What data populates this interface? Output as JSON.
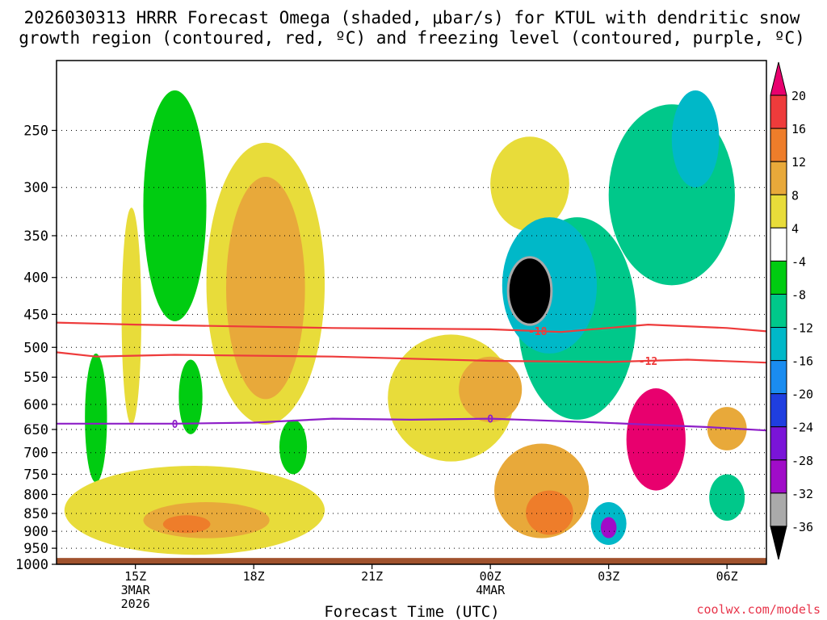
{
  "chart_data": {
    "type": "heatmap",
    "title_line1": "2026030313 HRRR Forecast Omega (shaded, μbar/s) for KTUL with dendritic snow",
    "title_line2": "growth region (contoured, red, ºC) and freezing level (contoured, purple, ºC)",
    "xlabel": "Forecast Time (UTC)",
    "ylabel": "",
    "credit": "coolwx.com/models",
    "x_ticks": [
      {
        "hour": 15,
        "label": "15Z",
        "sub1": "3MAR",
        "sub2": "2026"
      },
      {
        "hour": 18,
        "label": "18Z",
        "sub1": "",
        "sub2": ""
      },
      {
        "hour": 21,
        "label": "21Z",
        "sub1": "",
        "sub2": ""
      },
      {
        "hour": 24,
        "label": "00Z",
        "sub1": "4MAR",
        "sub2": ""
      },
      {
        "hour": 27,
        "label": "03Z",
        "sub1": "",
        "sub2": ""
      },
      {
        "hour": 30,
        "label": "06Z",
        "sub1": "",
        "sub2": ""
      }
    ],
    "xlim_hours": [
      13.0,
      31.0
    ],
    "y_ticks": [
      250,
      300,
      350,
      400,
      450,
      500,
      550,
      600,
      650,
      700,
      750,
      800,
      850,
      900,
      950,
      1000
    ],
    "ylim_hPa": [
      200,
      1000
    ],
    "y_scale": "log-pressure",
    "surface_pressure_hPa": 980,
    "colorbar": {
      "levels": [
        20,
        16,
        12,
        8,
        4,
        -4,
        -8,
        -12,
        -16,
        -20,
        -24,
        -28,
        -32,
        -36
      ],
      "colors": [
        "#e8006e",
        "#ee3b3b",
        "#ee7d2a",
        "#e8a93a",
        "#e8dc3a",
        "#ffffff",
        "#00cc11",
        "#00c88a",
        "#00b8c8",
        "#1a8cf0",
        "#1f3ee0",
        "#7a14d8",
        "#a00cc8",
        "#aaaaaa",
        "#000000"
      ],
      "unit": "μbar/s"
    },
    "omega_regions": [
      {
        "name": "green-1430",
        "t": 14.0,
        "p": 640,
        "dt": 0.28,
        "dp": 130,
        "value": -6
      },
      {
        "name": "green-1630",
        "t": 16.0,
        "p": 340,
        "dt": 0.8,
        "dp": 120,
        "value": -7
      },
      {
        "name": "green-1600-mid",
        "t": 16.4,
        "p": 590,
        "dt": 0.3,
        "dp": 70,
        "value": -6
      },
      {
        "name": "green-1850",
        "t": 19.0,
        "p": 690,
        "dt": 0.35,
        "dp": 60,
        "value": -6
      },
      {
        "name": "yellow-1500",
        "t": 14.9,
        "p": 480,
        "dt": 0.25,
        "dp": 160,
        "value": 5
      },
      {
        "name": "yellow-low",
        "t": 16.5,
        "p": 850,
        "dt": 3.3,
        "dp": 120,
        "value": 5
      },
      {
        "name": "orange-low",
        "t": 16.8,
        "p": 870,
        "dt": 1.6,
        "dp": 50,
        "value": 9
      },
      {
        "name": "red-low",
        "t": 16.3,
        "p": 880,
        "dt": 0.6,
        "dp": 25,
        "value": 14
      },
      {
        "name": "yellow-1830",
        "t": 18.3,
        "p": 450,
        "dt": 1.5,
        "dp": 190,
        "value": 5
      },
      {
        "name": "orange-1830",
        "t": 18.3,
        "p": 440,
        "dt": 1.0,
        "dp": 150,
        "value": 10
      },
      {
        "name": "yellow-2230",
        "t": 23.0,
        "p": 600,
        "dt": 1.6,
        "dp": 120,
        "value": 5
      },
      {
        "name": "yellow-0030-high",
        "t": 25.0,
        "p": 300,
        "dt": 1.0,
        "dp": 45,
        "value": 6
      },
      {
        "name": "green-0200-mid",
        "t": 26.2,
        "p": 480,
        "dt": 1.5,
        "dp": 150,
        "value": -9
      },
      {
        "name": "teal-0100",
        "t": 25.5,
        "p": 420,
        "dt": 1.2,
        "dp": 90,
        "value": -13
      },
      {
        "name": "black-0100",
        "t": 25.0,
        "p": 420,
        "dt": 0.55,
        "dp": 45,
        "value": -40
      },
      {
        "name": "orange-0000",
        "t": 24.0,
        "p": 575,
        "dt": 0.8,
        "dp": 60,
        "value": 10
      },
      {
        "name": "orange-0100-low",
        "t": 25.3,
        "p": 800,
        "dt": 1.2,
        "dp": 120,
        "value": 10
      },
      {
        "name": "red-0100-low",
        "t": 25.5,
        "p": 850,
        "dt": 0.6,
        "dp": 60,
        "value": 14
      },
      {
        "name": "green-0430-high",
        "t": 28.6,
        "p": 320,
        "dt": 1.6,
        "dp": 90,
        "value": -9
      },
      {
        "name": "teal-0430-high",
        "t": 29.2,
        "p": 260,
        "dt": 0.6,
        "dp": 40,
        "value": -13
      },
      {
        "name": "teal-0300-low",
        "t": 27.0,
        "p": 880,
        "dt": 0.45,
        "dp": 60,
        "value": -16
      },
      {
        "name": "purple-0300-low",
        "t": 27.0,
        "p": 890,
        "dt": 0.2,
        "dp": 30,
        "value": -29
      },
      {
        "name": "magenta-0400",
        "t": 28.2,
        "p": 680,
        "dt": 0.75,
        "dp": 110,
        "value": 22
      },
      {
        "name": "green-0600",
        "t": 30.0,
        "p": 810,
        "dt": 0.45,
        "dp": 60,
        "value": -9
      },
      {
        "name": "orange-0600",
        "t": 30.0,
        "p": 650,
        "dt": 0.5,
        "dp": 45,
        "value": 9
      }
    ],
    "contours": [
      {
        "name": "dgz-top",
        "label": "-18",
        "label_hour": 25.2,
        "color": "#ee3b3b",
        "points": [
          [
            13.0,
            462
          ],
          [
            15.0,
            465
          ],
          [
            20.0,
            470
          ],
          [
            24.0,
            472
          ],
          [
            25.8,
            476
          ],
          [
            28.0,
            465
          ],
          [
            30.0,
            470
          ],
          [
            31.0,
            475
          ]
        ]
      },
      {
        "name": "dgz-bottom",
        "label": "-12",
        "label_hour": 28.0,
        "color": "#ee3b3b",
        "points": [
          [
            13.0,
            508
          ],
          [
            14.0,
            515
          ],
          [
            16.0,
            512
          ],
          [
            20.0,
            515
          ],
          [
            24.0,
            522
          ],
          [
            27.0,
            524
          ],
          [
            29.0,
            520
          ],
          [
            31.0,
            525
          ]
        ]
      },
      {
        "name": "freezing-level",
        "label": "0",
        "label_hour": 16.0,
        "label2": "0",
        "label2_hour": 24.0,
        "color": "#8e1ec8",
        "points": [
          [
            13.0,
            638
          ],
          [
            16.0,
            638
          ],
          [
            18.0,
            636
          ],
          [
            20.0,
            628
          ],
          [
            22.0,
            630
          ],
          [
            24.0,
            628
          ],
          [
            26.5,
            635
          ],
          [
            28.0,
            640
          ],
          [
            29.5,
            645
          ],
          [
            31.0,
            652
          ]
        ]
      }
    ]
  }
}
